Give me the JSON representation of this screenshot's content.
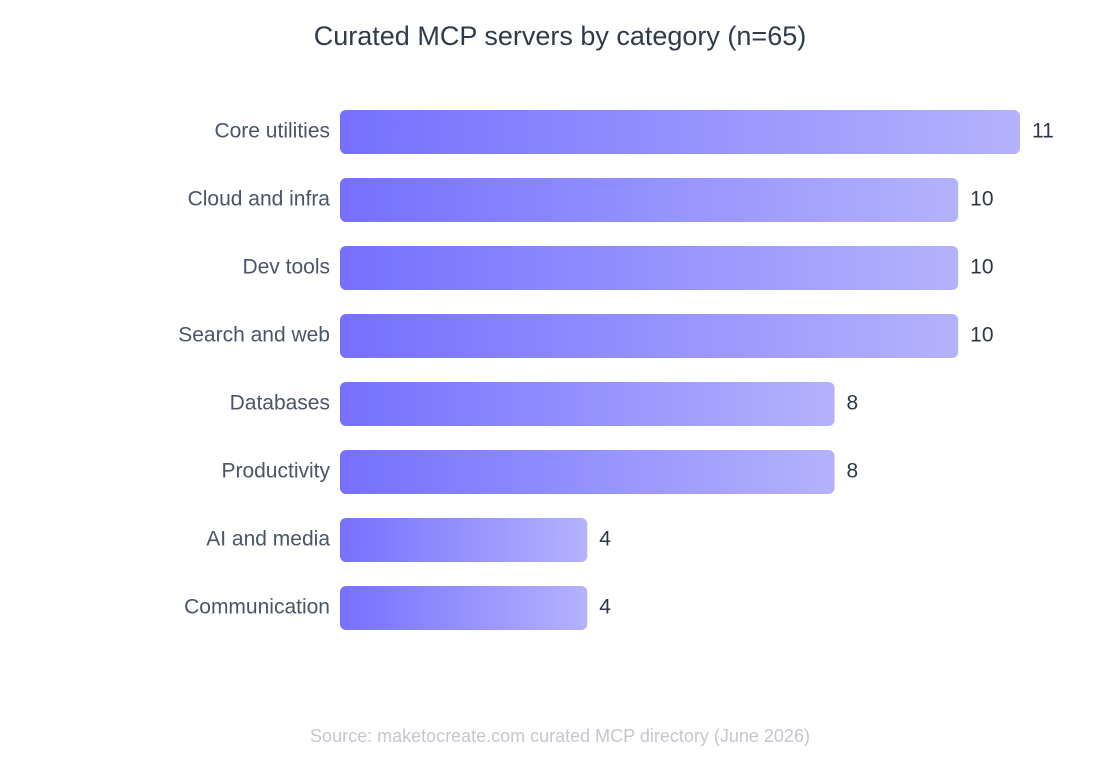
{
  "chart_data": {
    "type": "bar",
    "orientation": "horizontal",
    "title": "Curated MCP servers by category (n=65)",
    "categories": [
      "Core utilities",
      "Cloud and infra",
      "Dev tools",
      "Search and web",
      "Databases",
      "Productivity",
      "AI and media",
      "Communication"
    ],
    "values": [
      11,
      10,
      10,
      10,
      8,
      8,
      4,
      4
    ],
    "gradient": [
      "#7570fe",
      "#b5b2fd"
    ],
    "source": "Source: maketocreate.com curated MCP directory (June 2026)"
  }
}
